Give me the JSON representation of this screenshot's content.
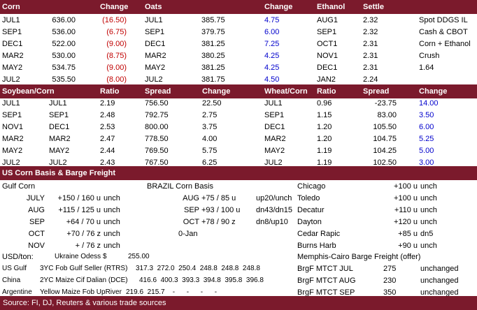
{
  "section1": {
    "headers": {
      "corn": "Corn",
      "change": "Change",
      "oats": "Oats",
      "oats_change": "Change",
      "ethanol": "Ethanol",
      "settle": "Settle"
    },
    "rows": [
      {
        "c_m": "JUL1",
        "c_p": "636.00",
        "c_ch": "(16.50)",
        "o_m": "JUL1",
        "o_p": "385.75",
        "o_ch": "4.75",
        "e_m": "AUG1",
        "e_p": "2.32",
        "note": "Spot DDGS IL"
      },
      {
        "c_m": "SEP1",
        "c_p": "536.00",
        "c_ch": "(6.75)",
        "o_m": "SEP1",
        "o_p": "379.75",
        "o_ch": "6.00",
        "e_m": "SEP1",
        "e_p": "2.32",
        "note": "Cash & CBOT"
      },
      {
        "c_m": "DEC1",
        "c_p": "522.00",
        "c_ch": "(9.00)",
        "o_m": "DEC1",
        "o_p": "381.25",
        "o_ch": "7.25",
        "e_m": "OCT1",
        "e_p": "2.31",
        "note": "Corn + Ethanol"
      },
      {
        "c_m": "MAR2",
        "c_p": "530.00",
        "c_ch": "(8.75)",
        "o_m": "MAR2",
        "o_p": "380.25",
        "o_ch": "4.25",
        "e_m": "NOV1",
        "e_p": "2.31",
        "note": "Crush"
      },
      {
        "c_m": "MAY2",
        "c_p": "534.75",
        "c_ch": "(9.00)",
        "o_m": "MAY2",
        "o_p": "381.25",
        "o_ch": "4.25",
        "e_m": "DEC1",
        "e_p": "2.31",
        "note": "1.64"
      },
      {
        "c_m": "JUL2",
        "c_p": "535.50",
        "c_ch": "(8.00)",
        "o_m": "JUL2",
        "o_p": "381.75",
        "o_ch": "4.50",
        "e_m": "JAN2",
        "e_p": "2.24",
        "note": ""
      }
    ]
  },
  "section2": {
    "headers": {
      "soy_corn": "Soybean/Corn",
      "ratio": "Ratio",
      "spread": "Spread",
      "change": "Change",
      "wheat_corn": "Wheat/Corn",
      "w_ratio": "Ratio",
      "w_spread": "Spread",
      "w_change": "Change"
    },
    "rows": [
      {
        "a": "JUL1",
        "b": "JUL1",
        "r": "2.19",
        "s": "756.50",
        "c": "22.50",
        "wm": "JUL1",
        "wr": "0.96",
        "ws": "-23.75",
        "wc": "14.00"
      },
      {
        "a": "SEP1",
        "b": "SEP1",
        "r": "2.48",
        "s": "792.75",
        "c": "2.75",
        "wm": "SEP1",
        "wr": "1.15",
        "ws": "83.00",
        "wc": "3.50"
      },
      {
        "a": "NOV1",
        "b": "DEC1",
        "r": "2.53",
        "s": "800.00",
        "c": "3.75",
        "wm": "DEC1",
        "wr": "1.20",
        "ws": "105.50",
        "wc": "6.00"
      },
      {
        "a": "MAR2",
        "b": "MAR2",
        "r": "2.47",
        "s": "778.50",
        "c": "4.00",
        "wm": "MAR2",
        "wr": "1.20",
        "ws": "104.75",
        "wc": "5.25"
      },
      {
        "a": "MAY2",
        "b": "MAY2",
        "r": "2.44",
        "s": "769.50",
        "c": "5.75",
        "wm": "MAY2",
        "wr": "1.19",
        "ws": "104.25",
        "wc": "5.00"
      },
      {
        "a": "JUL2",
        "b": "JUL2",
        "r": "2.43",
        "s": "767.50",
        "c": "6.25",
        "wm": "JUL2",
        "wr": "1.19",
        "ws": "102.50",
        "wc": "3.00"
      }
    ]
  },
  "section3": {
    "title": "US Corn Basis & Barge Freight",
    "gulf_title": "Gulf Corn",
    "brazil_title": "BRAZIL Corn Basis",
    "gulf_rows": [
      {
        "m": "JULY",
        "v": "+150 / 160 u",
        "c": "unch"
      },
      {
        "m": "AUG",
        "v": "+115 / 125 u",
        "c": "unch"
      },
      {
        "m": "SEP",
        "v": "+64 / 70 u",
        "c": "unch"
      },
      {
        "m": "OCT",
        "v": "+70 / 76 z",
        "c": "unch"
      },
      {
        "m": "NOV",
        "v": "+ / 76 z",
        "c": "unch"
      }
    ],
    "brazil_rows": [
      {
        "m": "AUG",
        "v": "+75 / 85 u",
        "c": "up20/unch"
      },
      {
        "m": "SEP",
        "v": "+93 / 100 u",
        "c": "dn43/dn15"
      },
      {
        "m": "OCT",
        "v": "+78 / 90 z",
        "c": "dn8/up10"
      },
      {
        "m": "",
        "v": "0-Jan",
        "c": ""
      }
    ],
    "city_rows": [
      {
        "city": "Chicago",
        "v": "+100 u",
        "c": "unch"
      },
      {
        "city": "Toledo",
        "v": "+100 u",
        "c": "unch"
      },
      {
        "city": "Decatur",
        "v": "+110 u",
        "c": "unch"
      },
      {
        "city": "Dayton",
        "v": "+120 u",
        "c": "unch"
      },
      {
        "city": "Cedar Rapic",
        "v": "+85 u",
        "c": "dn5"
      },
      {
        "city": "Burns Harb",
        "v": "+90 u",
        "c": "unch"
      }
    ]
  },
  "section4": {
    "usd_label": "USD/ton:",
    "ukraine_label": "Ukraine Odess",
    "ukraine_cur": "$",
    "ukraine_val": "255.00",
    "barge_title": "Memphis-Cairo Barge Freight (offer)",
    "origin_rows": [
      {
        "country": "US Gulf",
        "desc": "3YC Fob Gulf Seller (RTRS)",
        "vals": "317.3  272.0  250.4  248.8  248.8  248.8"
      },
      {
        "country": "China",
        "desc": "2YC Maize Cif Dalian (DCE)",
        "vals": "416.6  400.3  393.3  394.8  395.8  396.8"
      },
      {
        "country": "Argentine",
        "desc": "Yellow Maize Fob UpRiver",
        "vals": "219.6  215.7    -      -      -      -"
      }
    ],
    "barge_rows": [
      {
        "label": "BrgF MTCT JUL",
        "v": "275",
        "c": "unchanged"
      },
      {
        "label": "BrgF MTCT AUG",
        "v": "230",
        "c": "unchanged"
      },
      {
        "label": "BrgF MTCT SEP",
        "v": "350",
        "c": "unchanged"
      }
    ]
  },
  "footer": "Source: FI, DJ, Reuters & various trade sources",
  "colors": {
    "header_bg": "#7b1a2c",
    "negative": "#c00000",
    "positive": "#0000cc"
  }
}
